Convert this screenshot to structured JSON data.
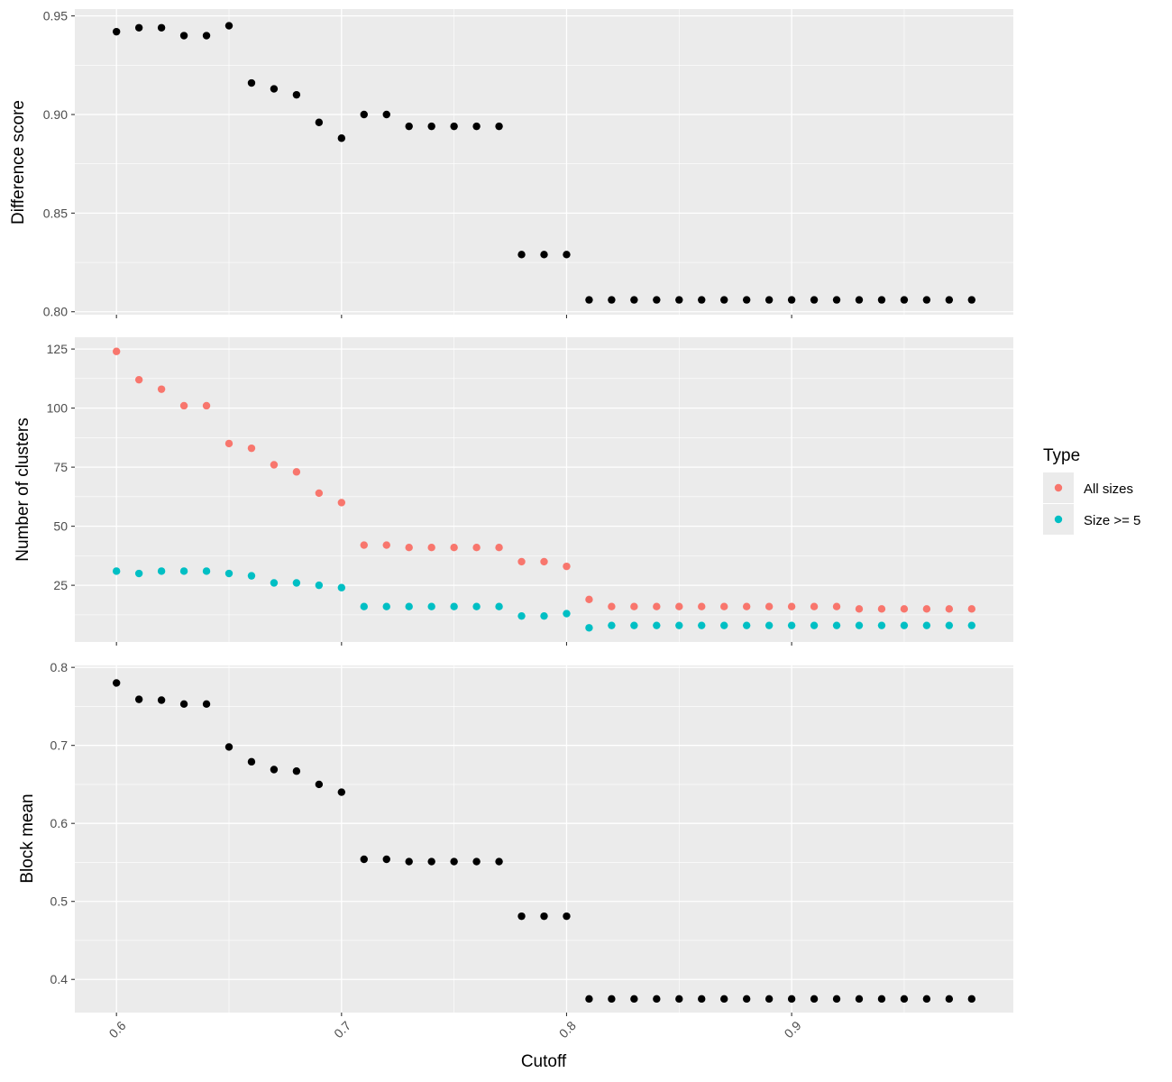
{
  "x_label": "Cutoff",
  "x_ticks": [
    0.6,
    0.7,
    0.8,
    0.9
  ],
  "x_tick_labels": [
    "0.6",
    "0.7",
    "0.8",
    "0.9"
  ],
  "legend": {
    "title": "Type",
    "items": [
      {
        "label": "All sizes",
        "color": "#F8766D"
      },
      {
        "label": "Size >= 5",
        "color": "#00BFC4"
      }
    ]
  },
  "chart_data": [
    {
      "type": "scatter",
      "ylabel": "Difference score",
      "xlim": [
        0.5815,
        0.9985
      ],
      "ylim": [
        0.7985,
        0.9535
      ],
      "y_ticks": [
        0.8,
        0.85,
        0.9,
        0.95
      ],
      "y_tick_labels": [
        "0.80",
        "0.85",
        "0.90",
        "0.95"
      ],
      "series": [
        {
          "color": "#000000",
          "x": [
            0.6,
            0.61,
            0.62,
            0.63,
            0.64,
            0.65,
            0.66,
            0.67,
            0.68,
            0.69,
            0.7,
            0.71,
            0.72,
            0.73,
            0.74,
            0.75,
            0.76,
            0.77,
            0.78,
            0.79,
            0.8,
            0.81,
            0.82,
            0.83,
            0.84,
            0.85,
            0.86,
            0.87,
            0.88,
            0.89,
            0.9,
            0.91,
            0.92,
            0.93,
            0.94,
            0.95,
            0.96,
            0.97,
            0.98
          ],
          "y": [
            0.942,
            0.944,
            0.944,
            0.94,
            0.94,
            0.945,
            0.916,
            0.913,
            0.91,
            0.896,
            0.888,
            0.9,
            0.9,
            0.894,
            0.894,
            0.894,
            0.894,
            0.894,
            0.829,
            0.829,
            0.829,
            0.806,
            0.806,
            0.806,
            0.806,
            0.806,
            0.806,
            0.806,
            0.806,
            0.806,
            0.806,
            0.806,
            0.806,
            0.806,
            0.806,
            0.806,
            0.806,
            0.806,
            0.806
          ]
        }
      ]
    },
    {
      "type": "scatter",
      "ylabel": "Number of clusters",
      "xlim": [
        0.5815,
        0.9985
      ],
      "ylim": [
        1,
        130
      ],
      "y_ticks": [
        25,
        50,
        75,
        100,
        125
      ],
      "y_tick_labels": [
        "25",
        "50",
        "75",
        "100",
        "125"
      ],
      "series": [
        {
          "name": "All sizes",
          "color": "#F8766D",
          "x": [
            0.6,
            0.61,
            0.62,
            0.63,
            0.64,
            0.65,
            0.66,
            0.67,
            0.68,
            0.69,
            0.7,
            0.71,
            0.72,
            0.73,
            0.74,
            0.75,
            0.76,
            0.77,
            0.78,
            0.79,
            0.8,
            0.81,
            0.82,
            0.83,
            0.84,
            0.85,
            0.86,
            0.87,
            0.88,
            0.89,
            0.9,
            0.91,
            0.92,
            0.93,
            0.94,
            0.95,
            0.96,
            0.97,
            0.98
          ],
          "y": [
            124,
            112,
            108,
            101,
            101,
            85,
            83,
            76,
            73,
            64,
            60,
            42,
            42,
            41,
            41,
            41,
            41,
            41,
            35,
            35,
            33,
            19,
            16,
            16,
            16,
            16,
            16,
            16,
            16,
            16,
            16,
            16,
            16,
            15,
            15,
            15,
            15,
            15,
            15
          ]
        },
        {
          "name": "Size >= 5",
          "color": "#00BFC4",
          "x": [
            0.6,
            0.61,
            0.62,
            0.63,
            0.64,
            0.65,
            0.66,
            0.67,
            0.68,
            0.69,
            0.7,
            0.71,
            0.72,
            0.73,
            0.74,
            0.75,
            0.76,
            0.77,
            0.78,
            0.79,
            0.8,
            0.81,
            0.82,
            0.83,
            0.84,
            0.85,
            0.86,
            0.87,
            0.88,
            0.89,
            0.9,
            0.91,
            0.92,
            0.93,
            0.94,
            0.95,
            0.96,
            0.97,
            0.98
          ],
          "y": [
            31,
            30,
            31,
            31,
            31,
            30,
            29,
            26,
            26,
            25,
            24,
            16,
            16,
            16,
            16,
            16,
            16,
            16,
            12,
            12,
            13,
            7,
            8,
            8,
            8,
            8,
            8,
            8,
            8,
            8,
            8,
            8,
            8,
            8,
            8,
            8,
            8,
            8,
            8
          ]
        }
      ]
    },
    {
      "type": "scatter",
      "ylabel": "Block mean",
      "xlim": [
        0.5815,
        0.9985
      ],
      "ylim": [
        0.3575,
        0.8025
      ],
      "y_ticks": [
        0.4,
        0.5,
        0.6,
        0.7,
        0.8
      ],
      "y_tick_labels": [
        "0.4",
        "0.5",
        "0.6",
        "0.7",
        "0.8"
      ],
      "series": [
        {
          "color": "#000000",
          "x": [
            0.6,
            0.61,
            0.62,
            0.63,
            0.64,
            0.65,
            0.66,
            0.67,
            0.68,
            0.69,
            0.7,
            0.71,
            0.72,
            0.73,
            0.74,
            0.75,
            0.76,
            0.77,
            0.78,
            0.79,
            0.8,
            0.81,
            0.82,
            0.83,
            0.84,
            0.85,
            0.86,
            0.87,
            0.88,
            0.89,
            0.9,
            0.91,
            0.92,
            0.93,
            0.94,
            0.95,
            0.96,
            0.97,
            0.98
          ],
          "y": [
            0.78,
            0.759,
            0.758,
            0.753,
            0.753,
            0.698,
            0.679,
            0.669,
            0.667,
            0.65,
            0.64,
            0.554,
            0.554,
            0.551,
            0.551,
            0.551,
            0.551,
            0.551,
            0.481,
            0.481,
            0.481,
            0.375,
            0.375,
            0.375,
            0.375,
            0.375,
            0.375,
            0.375,
            0.375,
            0.375,
            0.375,
            0.375,
            0.375,
            0.375,
            0.375,
            0.375,
            0.375,
            0.375,
            0.375
          ]
        }
      ]
    }
  ]
}
